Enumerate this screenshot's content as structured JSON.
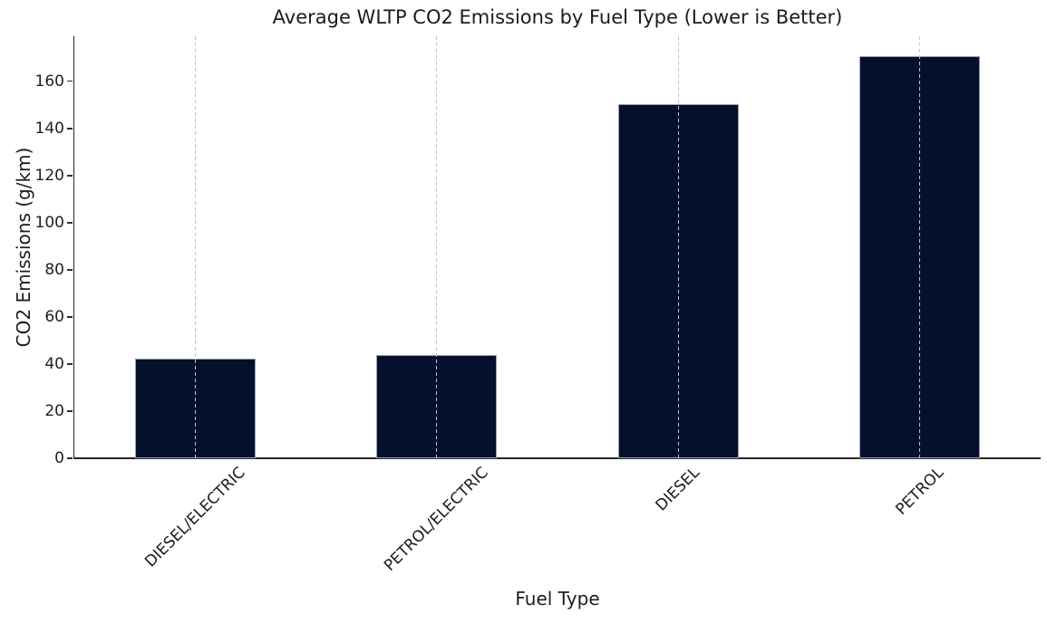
{
  "chart_data": {
    "type": "bar",
    "title": "Average WLTP CO2 Emissions by Fuel Type (Lower is Better)",
    "xlabel": "Fuel Type",
    "ylabel": "CO2 Emissions (g/km)",
    "categories": [
      "DIESEL/ELECTRIC",
      "PETROL/ELECTRIC",
      "DIESEL",
      "PETROL"
    ],
    "values": [
      42.4,
      44.0,
      150.1,
      170.6
    ],
    "yticks": [
      0,
      20,
      40,
      60,
      80,
      100,
      120,
      140,
      160
    ],
    "ylim": [
      0,
      179.1
    ],
    "xtick_rotation_deg": 45,
    "grid": {
      "axis": "x",
      "style": "dashed",
      "color": "#c4c4c8"
    },
    "legend": null,
    "colors": {
      "bar_fill": "#05102d",
      "bar_edge": "#9aa1ae",
      "spine": "#262626",
      "gridline": "#c4c4c8",
      "text": "#1c1c1c",
      "background": "#ffffff"
    }
  }
}
